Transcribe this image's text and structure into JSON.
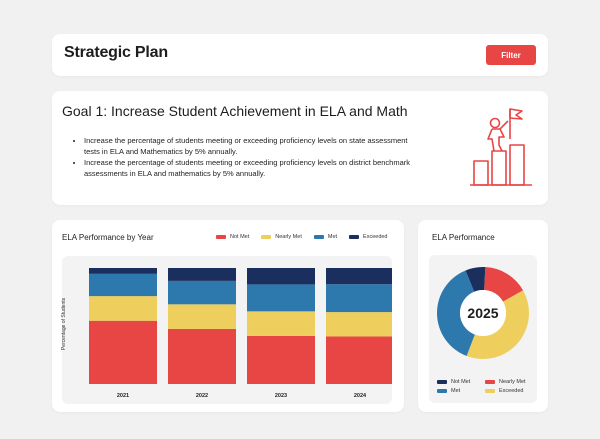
{
  "header": {
    "title": "Strategic Plan",
    "filter_label": "Filter"
  },
  "goal": {
    "title": "Goal 1: Increase Student Achievement in ELA and Math",
    "bullets": [
      "Increase the percentage of students meeting or exceeding proficiency levels on state assessment tests in ELA and Mathematics by 5% annually.",
      "Increase the percentage of students meeting or exceeding proficiency levels on district benchmark assessments in ELA and mathematics by 5% annually."
    ],
    "icon": "climber-flag-icon"
  },
  "colors": {
    "not_met": "#e84545",
    "nearly_met": "#eecf5e",
    "met": "#2d78ad",
    "exceeded": "#1b2f5e",
    "accent": "#e84545"
  },
  "bar_card": {
    "title": "ELA Performance by Year"
  },
  "donut_card": {
    "title": "ELA Performance"
  },
  "chart_data": [
    {
      "type": "bar",
      "stacked": true,
      "title": "ELA Performance by Year",
      "ylabel": "Percentage of Students",
      "xlabel": "",
      "categories": [
        "2021",
        "2022",
        "2023",
        "2024"
      ],
      "series": [
        {
          "name": "Not Met",
          "color": "#e84545",
          "values": [
            54,
            47,
            41,
            41
          ]
        },
        {
          "name": "Nearly Met",
          "color": "#eecf5e",
          "values": [
            21,
            21,
            21,
            21
          ]
        },
        {
          "name": "Met",
          "color": "#2d78ad",
          "values": [
            19,
            20,
            23,
            24
          ]
        },
        {
          "name": "Exceeded",
          "color": "#1b2f5e",
          "values": [
            5,
            11,
            14,
            14
          ]
        }
      ],
      "legend": "top",
      "ylim": [
        0,
        100
      ]
    },
    {
      "type": "pie",
      "donut": true,
      "title": "ELA Performance",
      "center_label": "2025",
      "categories": [
        "Nearly Met",
        "Exceeded",
        "Met",
        "Not Met"
      ],
      "values": [
        16,
        39,
        38,
        7
      ],
      "colors": [
        "#e84545",
        "#eecf5e",
        "#2d78ad",
        "#1b2f5e"
      ],
      "legend": [
        "Not Met",
        "Nearly Met",
        "Met",
        "Exceeded"
      ],
      "legend_colors": [
        "#1b2f5e",
        "#e84545",
        "#2d78ad",
        "#eecf5e"
      ]
    }
  ]
}
